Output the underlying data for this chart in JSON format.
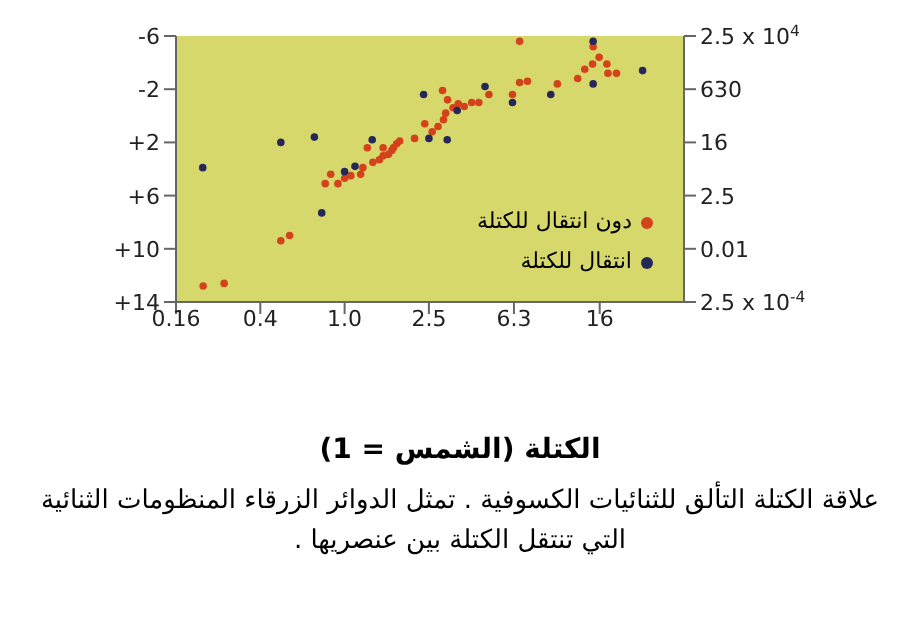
{
  "chart_data": {
    "type": "scatter",
    "xlabel": "الكتلة (الشمس = 1)",
    "annotations": [
      "2.5 x 10$^{4}$",
      "630",
      "16",
      "2.5",
      "0.01",
      "2.5 x 10$^{-4}$",
      "علاقة الكتلة التألق للثنائيات الكسوفية . تمثل الدوائر الزرقاء المنظومات الثنائية التي تنتقل الكتلة بين عنصريها ."
    ],
    "log": "x",
    "xlim": [
      0.16,
      40
    ],
    "xticks": [
      0.16,
      0.4,
      {
        "value": 1,
        "label": "1.0"
      },
      2.5,
      6.3,
      16
    ],
    "ylim": [
      14,
      -6
    ],
    "yticks": [
      -6,
      -2,
      {
        "value": 2,
        "label": "+2"
      },
      {
        "value": 6,
        "label": "+6"
      },
      {
        "value": 10,
        "label": "+10"
      },
      {
        "value": 14,
        "label": "+14"
      }
    ],
    "grid": false,
    "legend": "bottom right",
    "marker": "circle",
    "series": [
      {
        "name": "دون انتقال للكتلة",
        "color": "#d4421c",
        "x": [
          0.215,
          0.27,
          0.5,
          0.55,
          0.81,
          0.86,
          0.93,
          1.0,
          1.07,
          1.19,
          1.22,
          1.36,
          1.28,
          1.46,
          1.52,
          1.52,
          1.61,
          1.67,
          1.7,
          1.76,
          1.82,
          2.14,
          2.39,
          2.59,
          2.76,
          2.93,
          3.0,
          2.9,
          3.06,
          3.25,
          3.44,
          3.67,
          3.98,
          4.3,
          4.8,
          6.2,
          6.7,
          7.3,
          6.7,
          10.1,
          12.6,
          13.6,
          14.8,
          14.9,
          15.9,
          17.3,
          17.5,
          19.2
        ],
        "values": [
          12.8,
          12.6,
          9.4,
          9.0,
          5.1,
          4.4,
          5.1,
          4.7,
          4.5,
          4.4,
          3.9,
          3.5,
          2.4,
          3.3,
          2.4,
          3.0,
          2.9,
          2.6,
          2.4,
          2.1,
          1.9,
          1.7,
          0.6,
          1.2,
          0.8,
          0.3,
          -0.2,
          -1.9,
          -1.2,
          -0.6,
          -0.9,
          -0.7,
          -1.0,
          -1.0,
          -1.6,
          -1.6,
          -2.5,
          -2.6,
          -5.6,
          -2.4,
          -2.8,
          -3.5,
          -3.9,
          -5.2,
          -4.4,
          -3.9,
          -3.2,
          -3.2
        ]
      },
      {
        "name": "انتقال للكتلة",
        "color": "#26285a",
        "x": [
          0.214,
          0.5,
          0.72,
          0.78,
          1.0,
          1.12,
          1.35,
          2.36,
          2.5,
          3.05,
          3.4,
          4.6,
          6.2,
          9.4,
          14.9,
          14.9,
          25.5
        ],
        "values": [
          3.9,
          2.0,
          1.6,
          7.3,
          4.2,
          3.8,
          1.8,
          -1.6,
          1.7,
          1.8,
          -0.4,
          -2.2,
          -1.0,
          -1.6,
          -5.6,
          -2.4,
          -3.4
        ]
      }
    ]
  }
}
